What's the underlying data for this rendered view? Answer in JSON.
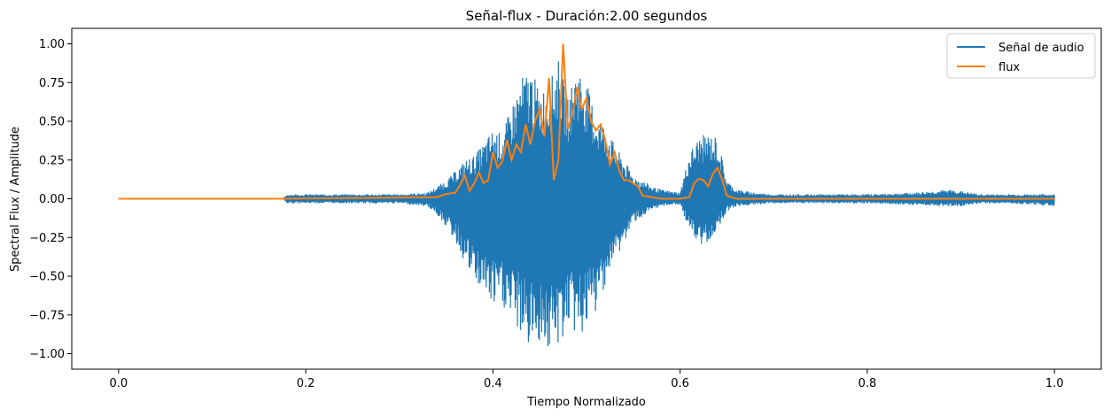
{
  "chart_data": {
    "type": "line",
    "title": "Señal-flux - Duración:2.00 segundos",
    "xlabel": "Tiempo Normalizado",
    "ylabel": "Spectral Flux / Amplitude",
    "xlim": [
      -0.05,
      1.05
    ],
    "ylim": [
      -1.1,
      1.1
    ],
    "xticks": [
      0.0,
      0.2,
      0.4,
      0.6,
      0.8,
      1.0
    ],
    "xtick_labels": [
      "0.0",
      "0.2",
      "0.4",
      "0.6",
      "0.8",
      "1.0"
    ],
    "yticks": [
      -1.0,
      -0.75,
      -0.5,
      -0.25,
      0.0,
      0.25,
      0.5,
      0.75,
      1.0
    ],
    "ytick_labels": [
      "−1.00",
      "−0.75",
      "−0.50",
      "−0.25",
      "0.00",
      "0.25",
      "0.50",
      "0.75",
      "1.00"
    ],
    "grid": false,
    "legend_position": "top-right",
    "series": [
      {
        "name": "Señal de audio",
        "color": "#1f77b4",
        "kind": "envelope",
        "x": [
          0.0,
          0.17,
          0.176,
          0.18,
          0.2,
          0.25,
          0.3,
          0.33,
          0.34,
          0.35,
          0.36,
          0.37,
          0.38,
          0.39,
          0.4,
          0.41,
          0.42,
          0.43,
          0.44,
          0.45,
          0.46,
          0.47,
          0.48,
          0.49,
          0.5,
          0.51,
          0.52,
          0.53,
          0.54,
          0.55,
          0.56,
          0.57,
          0.58,
          0.59,
          0.6,
          0.61,
          0.62,
          0.63,
          0.64,
          0.65,
          0.66,
          0.68,
          0.7,
          0.75,
          0.8,
          0.85,
          0.89,
          0.9,
          0.92,
          0.95,
          0.98,
          1.0
        ],
        "upper": [
          0.0,
          0.0,
          0.0,
          0.03,
          0.03,
          0.03,
          0.03,
          0.04,
          0.08,
          0.12,
          0.18,
          0.25,
          0.28,
          0.36,
          0.45,
          0.42,
          0.6,
          0.78,
          0.85,
          0.7,
          0.75,
          0.9,
          0.65,
          0.88,
          0.75,
          0.55,
          0.48,
          0.35,
          0.25,
          0.15,
          0.12,
          0.08,
          0.06,
          0.05,
          0.04,
          0.3,
          0.4,
          0.42,
          0.4,
          0.12,
          0.06,
          0.04,
          0.03,
          0.03,
          0.03,
          0.04,
          0.06,
          0.05,
          0.03,
          0.03,
          0.03,
          0.03
        ],
        "lower": [
          0.0,
          0.0,
          0.0,
          -0.03,
          -0.03,
          -0.03,
          -0.03,
          -0.05,
          -0.1,
          -0.18,
          -0.28,
          -0.42,
          -0.55,
          -0.6,
          -0.72,
          -0.7,
          -0.8,
          -0.88,
          -0.98,
          -0.92,
          -1.0,
          -0.98,
          -0.82,
          -0.9,
          -0.85,
          -0.75,
          -0.55,
          -0.4,
          -0.3,
          -0.15,
          -0.12,
          -0.08,
          -0.05,
          -0.04,
          -0.04,
          -0.2,
          -0.32,
          -0.28,
          -0.2,
          -0.08,
          -0.05,
          -0.04,
          -0.03,
          -0.03,
          -0.03,
          -0.04,
          -0.05,
          -0.05,
          -0.03,
          -0.03,
          -0.04,
          -0.05
        ]
      },
      {
        "name": "flux",
        "color": "#ff7f0e",
        "kind": "line",
        "x": [
          0.0,
          0.17,
          0.34,
          0.35,
          0.36,
          0.365,
          0.37,
          0.375,
          0.38,
          0.385,
          0.39,
          0.395,
          0.4,
          0.405,
          0.41,
          0.415,
          0.42,
          0.425,
          0.43,
          0.435,
          0.44,
          0.445,
          0.45,
          0.455,
          0.46,
          0.465,
          0.47,
          0.475,
          0.48,
          0.485,
          0.49,
          0.495,
          0.5,
          0.505,
          0.51,
          0.515,
          0.52,
          0.525,
          0.53,
          0.535,
          0.54,
          0.545,
          0.55,
          0.555,
          0.56,
          0.57,
          0.58,
          0.6,
          0.61,
          0.615,
          0.62,
          0.625,
          0.63,
          0.635,
          0.64,
          0.645,
          0.65,
          0.655,
          0.66,
          0.7,
          0.75,
          0.8,
          0.85,
          0.9,
          0.95,
          1.0
        ],
        "y": [
          0.0,
          0.0,
          0.01,
          0.03,
          0.04,
          0.09,
          0.15,
          0.05,
          0.1,
          0.17,
          0.1,
          0.12,
          0.3,
          0.2,
          0.24,
          0.38,
          0.25,
          0.35,
          0.3,
          0.48,
          0.35,
          0.5,
          0.58,
          0.4,
          0.78,
          0.12,
          0.25,
          1.0,
          0.45,
          0.55,
          0.72,
          0.58,
          0.65,
          0.5,
          0.44,
          0.48,
          0.38,
          0.22,
          0.3,
          0.18,
          0.12,
          0.12,
          0.1,
          0.08,
          0.02,
          0.01,
          0.0,
          0.0,
          0.01,
          0.1,
          0.13,
          0.12,
          0.08,
          0.16,
          0.2,
          0.12,
          0.02,
          0.01,
          0.0,
          0.0,
          0.0,
          0.0,
          0.0,
          0.0,
          0.0,
          0.0
        ]
      }
    ]
  }
}
